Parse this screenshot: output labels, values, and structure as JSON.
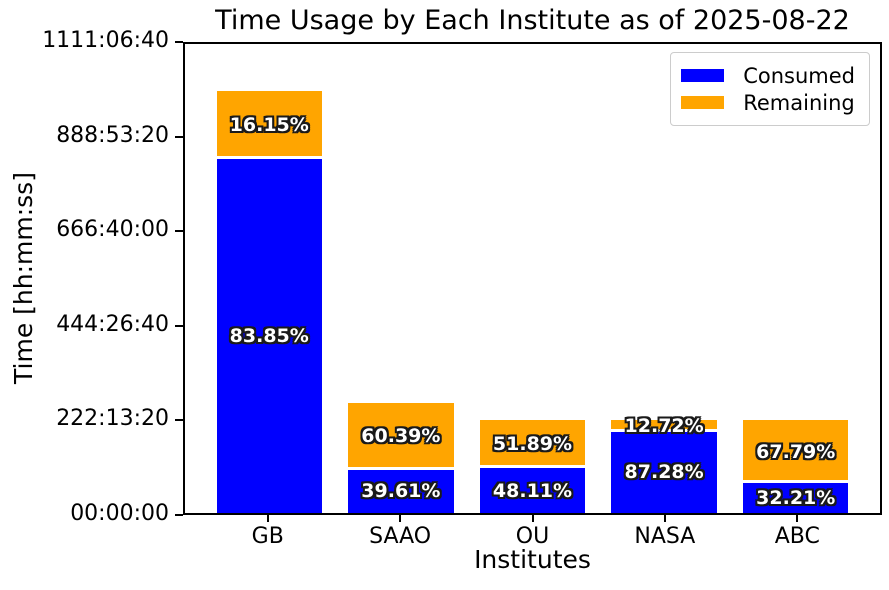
{
  "chart_data": {
    "type": "bar",
    "stacked": true,
    "title": "Time Usage by Each Institute as of 2025-08-22",
    "xlabel": "Institutes",
    "ylabel": "Time [hh:mm:ss]",
    "categories": [
      "GB",
      "SAAO",
      "OU",
      "NASA",
      "ABC"
    ],
    "series": [
      {
        "name": "Consumed",
        "color": "#0000ff",
        "percent": [
          83.85,
          39.61,
          48.11,
          87.28,
          32.21
        ]
      },
      {
        "name": "Remaining",
        "color": "#ffa500",
        "percent": [
          16.15,
          60.39,
          51.89,
          12.72,
          67.79
        ]
      }
    ],
    "totals_seconds_est": [
      3600000,
      936000,
      792000,
      792000,
      792000
    ],
    "ylim_seconds": [
      0,
      4000000
    ],
    "yticks": [
      {
        "seconds": 0,
        "label": "00:00:00"
      },
      {
        "seconds": 800000,
        "label": "222:13:20"
      },
      {
        "seconds": 1600000,
        "label": "444:26:40"
      },
      {
        "seconds": 2400000,
        "label": "666:40:00"
      },
      {
        "seconds": 3200000,
        "label": "888:53:20"
      },
      {
        "seconds": 4000000,
        "label": "1111:06:40"
      }
    ],
    "legend": {
      "position": "upper right",
      "entries": [
        "Consumed",
        "Remaining"
      ]
    },
    "grid": false,
    "bar_label_style": {
      "fill": "#ffffff",
      "outline": "#1a1a1a"
    }
  }
}
